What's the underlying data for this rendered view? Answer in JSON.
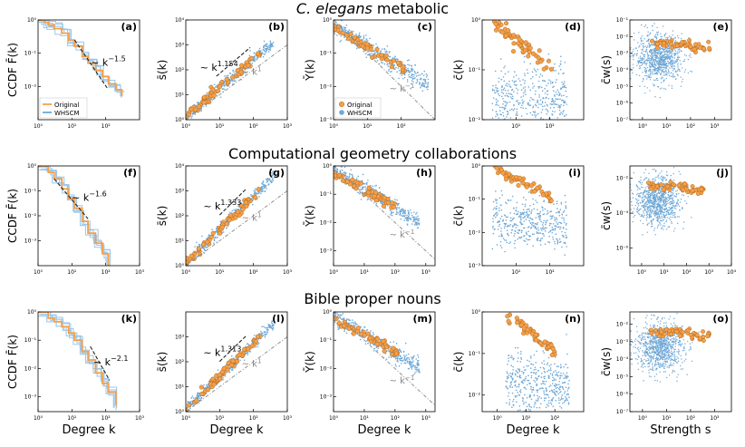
{
  "figure": {
    "row_titles": [
      "C. elegans metabolic",
      "Computational geometry collaborations",
      "Bible proper nouns"
    ],
    "row_title_italic_part": "C. elegans",
    "legend": {
      "original": "Original",
      "whscm": "WHSCM"
    },
    "colors": {
      "original": "#f5a04a",
      "original_edge": "#b36a1d",
      "whscm": "#6fa8d6",
      "whscm_light": "#9cc6e8",
      "guide": "#222222",
      "gray_guide": "#888888"
    }
  },
  "chart_data": [
    {
      "id": "a",
      "type": "line",
      "row": 0,
      "col": 0,
      "title": "(a)",
      "ylabel": "CCDF F̄(k)",
      "xlabel": "",
      "xlim": [
        1,
        1000
      ],
      "ylim": [
        0.001,
        1
      ],
      "xticks": [
        1,
        10,
        100
      ],
      "yticks": [
        0.01,
        0.1,
        1
      ],
      "guide": {
        "label": "~ k",
        "exp": "−1.5",
        "slope": -1.5,
        "x": [
          12,
          110
        ]
      },
      "series": [
        {
          "name": "Original",
          "x": [
            1,
            1.5,
            2,
            3,
            5,
            8,
            12,
            20,
            30,
            50,
            80,
            120,
            200,
            300
          ],
          "y": [
            1,
            0.85,
            0.7,
            0.55,
            0.4,
            0.25,
            0.16,
            0.08,
            0.05,
            0.03,
            0.02,
            0.012,
            0.008,
            0.005
          ]
        }
      ]
    },
    {
      "id": "b",
      "type": "scatter",
      "row": 0,
      "col": 1,
      "title": "(b)",
      "ylabel": "s̄(k)",
      "xlim": [
        1,
        1000
      ],
      "ylim": [
        1,
        10000
      ],
      "xticks": [
        1,
        10,
        100,
        1000
      ],
      "yticks": [
        1,
        10,
        100,
        1000,
        10000
      ],
      "guide": {
        "label": "~ k",
        "exp": "1.154",
        "slope": 1.154,
        "x": [
          8,
          80
        ]
      },
      "unit_guide": {
        "label": "~ k",
        "exp": "1"
      }
    },
    {
      "id": "c",
      "type": "scatter",
      "row": 0,
      "col": 2,
      "title": "(c)",
      "ylabel": "Ȳ(k)",
      "xlim": [
        1,
        1000
      ],
      "ylim": [
        0.001,
        1
      ],
      "xticks": [
        1,
        10,
        100
      ],
      "yticks": [
        0.001,
        0.01,
        0.1,
        1
      ],
      "unit_guide": {
        "label": "~ k",
        "exp": "−1"
      }
    },
    {
      "id": "d",
      "type": "scatter",
      "row": 0,
      "col": 3,
      "title": "(d)",
      "ylabel": "c̄(k)",
      "xlim": [
        1,
        1000
      ],
      "ylim": [
        0.01,
        1
      ],
      "xticks": [
        10,
        100
      ],
      "yticks": [
        0.01,
        0.1,
        1
      ]
    },
    {
      "id": "e",
      "type": "scatter",
      "row": 0,
      "col": 4,
      "title": "(e)",
      "ylabel": "c̄w(s)",
      "xlim": [
        0.3,
        5000
      ],
      "ylim": [
        1e-07,
        0.1
      ],
      "xticks": [
        1,
        10,
        100,
        1000
      ],
      "yticks": [
        1e-07,
        1e-06,
        1e-05,
        0.0001,
        0.001,
        0.01,
        0.1
      ]
    },
    {
      "id": "f",
      "type": "line",
      "row": 1,
      "col": 0,
      "title": "(f)",
      "ylabel": "CCDF F̄(k)",
      "xlim": [
        1,
        1000
      ],
      "ylim": [
        0.0001,
        1
      ],
      "xticks": [
        1,
        10,
        100,
        1000
      ],
      "yticks": [
        0.001,
        0.01,
        0.1,
        1
      ],
      "guide": {
        "label": "~ k",
        "exp": "−1.6",
        "slope": -1.6,
        "x": [
          3,
          30
        ]
      },
      "series": [
        {
          "name": "Original",
          "x": [
            1,
            2,
            3,
            5,
            8,
            12,
            20,
            30,
            50,
            80,
            120
          ],
          "y": [
            1,
            0.55,
            0.3,
            0.12,
            0.05,
            0.02,
            0.006,
            0.002,
            0.0008,
            0.0003,
            0.0001
          ]
        }
      ]
    },
    {
      "id": "g",
      "type": "scatter",
      "row": 1,
      "col": 1,
      "title": "(g)",
      "ylabel": "s̄(k)",
      "xlim": [
        1,
        1000
      ],
      "ylim": [
        1,
        10000
      ],
      "xticks": [
        1,
        10,
        100,
        1000
      ],
      "yticks": [
        1,
        10,
        100,
        1000,
        10000
      ],
      "guide": {
        "label": "~ k",
        "exp": "1.333",
        "slope": 1.333,
        "x": [
          10,
          60
        ]
      },
      "unit_guide": {
        "label": "~ k",
        "exp": "1"
      }
    },
    {
      "id": "h",
      "type": "scatter",
      "row": 1,
      "col": 2,
      "title": "(h)",
      "ylabel": "Ȳ(k)",
      "xlim": [
        1,
        2000
      ],
      "ylim": [
        0.0003,
        1
      ],
      "xticks": [
        1,
        10,
        100,
        1000
      ],
      "yticks": [
        0.001,
        0.01,
        0.1,
        1
      ],
      "unit_guide": {
        "label": "~ k",
        "exp": "−1"
      }
    },
    {
      "id": "i",
      "type": "scatter",
      "row": 1,
      "col": 3,
      "title": "(i)",
      "ylabel": "c̄(k)",
      "xlim": [
        1,
        1000
      ],
      "ylim": [
        0.001,
        1
      ],
      "xticks": [
        10,
        100
      ],
      "yticks": [
        0.001,
        0.01,
        0.1,
        1
      ]
    },
    {
      "id": "j",
      "type": "scatter",
      "row": 1,
      "col": 4,
      "title": "(j)",
      "ylabel": "c̄w(s)",
      "xlim": [
        0.3,
        10000
      ],
      "ylim": [
        1e-07,
        0.05
      ],
      "xticks": [
        1,
        10,
        100,
        1000,
        10000
      ],
      "yticks": [
        1e-06,
        0.0001,
        0.01
      ]
    },
    {
      "id": "k",
      "type": "line",
      "row": 2,
      "col": 0,
      "title": "(k)",
      "ylabel": "CCDF F̄(k)",
      "xlabel": "Degree k",
      "xlim": [
        1,
        1000
      ],
      "ylim": [
        0.0003,
        1
      ],
      "xticks": [
        1,
        10,
        100,
        1000
      ],
      "yticks": [
        0.001,
        0.01,
        0.1,
        1
      ],
      "guide": {
        "label": "~ k",
        "exp": "−2.1",
        "slope": -2.1,
        "x": [
          35,
          130
        ]
      },
      "series": [
        {
          "name": "Original",
          "x": [
            1,
            2,
            3,
            5,
            8,
            12,
            20,
            30,
            50,
            80,
            120,
            200
          ],
          "y": [
            1,
            0.6,
            0.45,
            0.3,
            0.18,
            0.1,
            0.04,
            0.02,
            0.007,
            0.003,
            0.0015,
            0.0005
          ]
        }
      ]
    },
    {
      "id": "l",
      "type": "scatter",
      "row": 2,
      "col": 1,
      "title": "(l)",
      "ylabel": "s̄(k)",
      "xlabel": "Degree k",
      "xlim": [
        1,
        1000
      ],
      "ylim": [
        1,
        10000
      ],
      "xticks": [
        1,
        10,
        100,
        1000
      ],
      "yticks": [
        1,
        10,
        100,
        1000
      ],
      "guide": {
        "label": "~ k",
        "exp": "1.313",
        "slope": 1.313,
        "x": [
          10,
          60
        ]
      },
      "unit_guide": {
        "label": "~ k",
        "exp": "1"
      }
    },
    {
      "id": "m",
      "type": "scatter",
      "row": 2,
      "col": 2,
      "title": "(m)",
      "ylabel": "Ȳ(k)",
      "xlabel": "Degree k",
      "xlim": [
        1,
        2000
      ],
      "ylim": [
        0.0003,
        1
      ],
      "xticks": [
        1,
        10,
        100,
        1000
      ],
      "yticks": [
        0.001,
        0.01,
        0.1,
        1
      ],
      "unit_guide": {
        "label": "~ k",
        "exp": "−1"
      }
    },
    {
      "id": "n",
      "type": "scatter",
      "row": 2,
      "col": 3,
      "title": "(n)",
      "ylabel": "c̄(k)",
      "xlabel": "Degree k",
      "xlim": [
        0.3,
        1000
      ],
      "ylim": [
        0.004,
        1
      ],
      "xticks": [
        1,
        10,
        100
      ],
      "yticks": [
        0.01,
        0.1,
        1
      ]
    },
    {
      "id": "o",
      "type": "scatter",
      "row": 2,
      "col": 4,
      "title": "(o)",
      "ylabel": "c̄w(s)",
      "xlabel": "Strength s",
      "xlim": [
        0.3,
        5000
      ],
      "ylim": [
        1e-07,
        0.05
      ],
      "xticks": [
        1,
        10,
        100,
        1000
      ],
      "yticks": [
        1e-07,
        1e-06,
        1e-05,
        0.0001,
        0.001,
        0.01
      ]
    }
  ]
}
